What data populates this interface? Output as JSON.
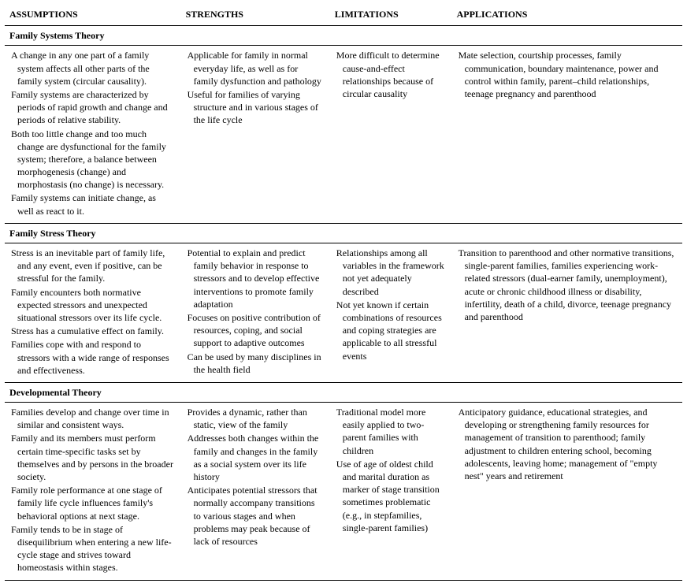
{
  "columns": [
    "ASSUMPTIONS",
    "STRENGTHS",
    "LIMITATIONS",
    "APPLICATIONS"
  ],
  "theories": [
    {
      "name": "Family Systems Theory",
      "assumptions": [
        "A change in any one part of a family system affects all other parts of the family system (circular causality).",
        "Family systems are characterized by periods of rapid growth and change and periods of relative stability.",
        "Both too little change and too much change are dysfunctional for the family system; therefore, a balance between morphogenesis (change) and morphostasis (no change) is necessary.",
        "Family systems can initiate change, as well as react to it."
      ],
      "strengths": [
        "Applicable for family in normal everyday life, as well as for family dysfunction and pathology",
        "Useful for families of varying structure and in various stages of the life cycle"
      ],
      "limitations": [
        "More difficult to determine cause-and-effect relationships because of circular causality"
      ],
      "applications": [
        "Mate selection, courtship processes, family communication, boundary maintenance, power and control within family, parent–child relationships, teenage pregnancy and parenthood"
      ]
    },
    {
      "name": "Family Stress Theory",
      "assumptions": [
        "Stress is an inevitable part of family life, and any event, even if positive, can be stressful for the family.",
        "Family encounters both normative expected stressors and unexpected situational stressors over its life cycle.",
        "Stress has a cumulative effect on family.",
        "Families cope with and respond to stressors with a wide range of responses and effectiveness."
      ],
      "strengths": [
        "Potential to explain and predict family behavior in response to stressors and to develop effective interventions to promote family adaptation",
        "Focuses on positive contribution of resources, coping, and social support to adaptive outcomes",
        "Can be used by many disciplines in the health field"
      ],
      "limitations": [
        "Relationships among all variables in the framework not yet adequately described",
        "Not yet known if certain combinations of resources and coping strategies are applicable to all stressful events"
      ],
      "applications": [
        "Transition to parenthood and other normative transitions, single-parent families, families experiencing work-related stressors (dual-earner family, unemployment), acute or chronic childhood illness or disability, infertility, death of a child, divorce, teenage pregnancy and parenthood"
      ]
    },
    {
      "name": "Developmental Theory",
      "assumptions": [
        "Families develop and change over time in similar and consistent ways.",
        "Family and its members must perform certain time-specific tasks set by themselves and by persons in the broader society.",
        "Family role performance at one stage of family life cycle influences family's behavioral options at next stage.",
        "Family tends to be in stage of disequilibrium when entering a new life-cycle stage and strives toward homeostasis within stages."
      ],
      "strengths": [
        "Provides a dynamic, rather than static, view of the family",
        "Addresses both changes within the family and changes in the family as a social system over its life history",
        "Anticipates potential stressors that normally accompany transitions to various stages and when problems may peak because of lack of resources"
      ],
      "limitations": [
        "Traditional model more easily applied to two-parent families with children",
        "Use of age of oldest child and marital duration as marker of stage transition sometimes problematic (e.g., in stepfamilies, single-parent families)"
      ],
      "applications": [
        "Anticipatory guidance, educational strategies, and developing or strengthening family resources for management of transition to parenthood; family adjustment to children entering school, becoming adolescents, leaving home; management of \"empty nest\" years and retirement"
      ]
    }
  ],
  "style": {
    "font_family": "Times New Roman",
    "font_size_pt": 9,
    "line_height": 1.35,
    "border_color": "#000000",
    "background": "#ffffff",
    "col_widths_pct": [
      26,
      22,
      18,
      34
    ]
  }
}
